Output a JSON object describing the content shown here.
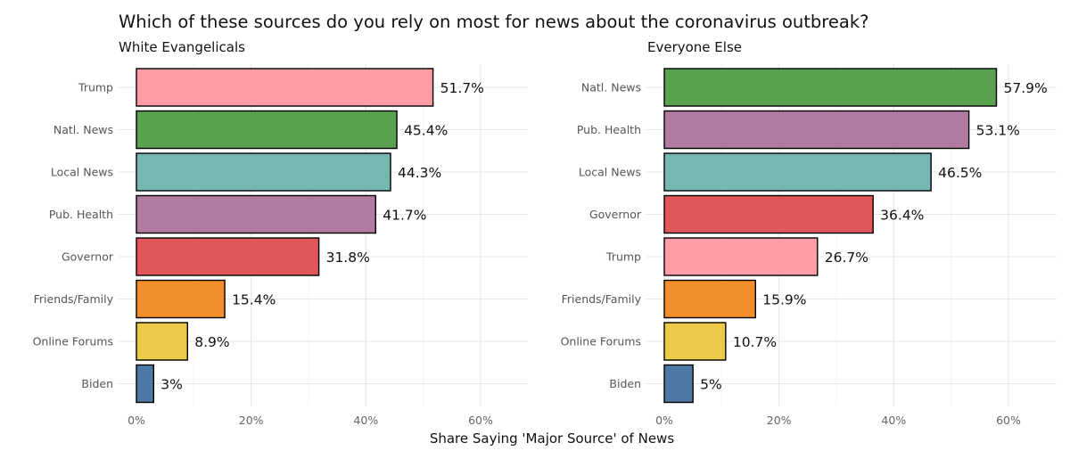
{
  "title": "Which of these sources do you rely on most for news about the coronavirus outbreak?",
  "xlabel": "Share Saying 'Major Source' of News",
  "colors": {
    "Trump": "#FF9DA7",
    "Natl. News": "#59A14F",
    "Local News": "#76B7B2",
    "Pub. Health": "#B07AA1",
    "Governor": "#E15759",
    "Friends/Family": "#F28E2B",
    "Online Forums": "#EDC948",
    "Biden": "#4E79A7"
  },
  "chart_data": [
    {
      "type": "bar",
      "orientation": "horizontal",
      "title": "White Evangelicals",
      "categories": [
        "Trump",
        "Natl. News",
        "Local News",
        "Pub. Health",
        "Governor",
        "Friends/Family",
        "Online Forums",
        "Biden"
      ],
      "values": [
        51.7,
        45.4,
        44.3,
        41.7,
        31.8,
        15.4,
        8.9,
        3
      ],
      "labels": [
        "51.7%",
        "45.4%",
        "44.3%",
        "41.7%",
        "31.8%",
        "15.4%",
        "8.9%",
        "3%"
      ],
      "xlim": [
        0,
        67
      ],
      "xticks": [
        0,
        20,
        40,
        60
      ],
      "xtick_labels": [
        "0%",
        "20%",
        "40%",
        "60%"
      ],
      "grid": true
    },
    {
      "type": "bar",
      "orientation": "horizontal",
      "title": "Everyone Else",
      "categories": [
        "Natl. News",
        "Pub. Health",
        "Local News",
        "Governor",
        "Trump",
        "Friends/Family",
        "Online Forums",
        "Biden"
      ],
      "values": [
        57.9,
        53.1,
        46.5,
        36.4,
        26.7,
        15.9,
        10.7,
        5
      ],
      "labels": [
        "57.9%",
        "53.1%",
        "46.5%",
        "36.4%",
        "26.7%",
        "15.9%",
        "10.7%",
        "5%"
      ],
      "xlim": [
        0,
        67
      ],
      "xticks": [
        0,
        20,
        40,
        60
      ],
      "xtick_labels": [
        "0%",
        "20%",
        "40%",
        "60%"
      ],
      "grid": true
    }
  ]
}
